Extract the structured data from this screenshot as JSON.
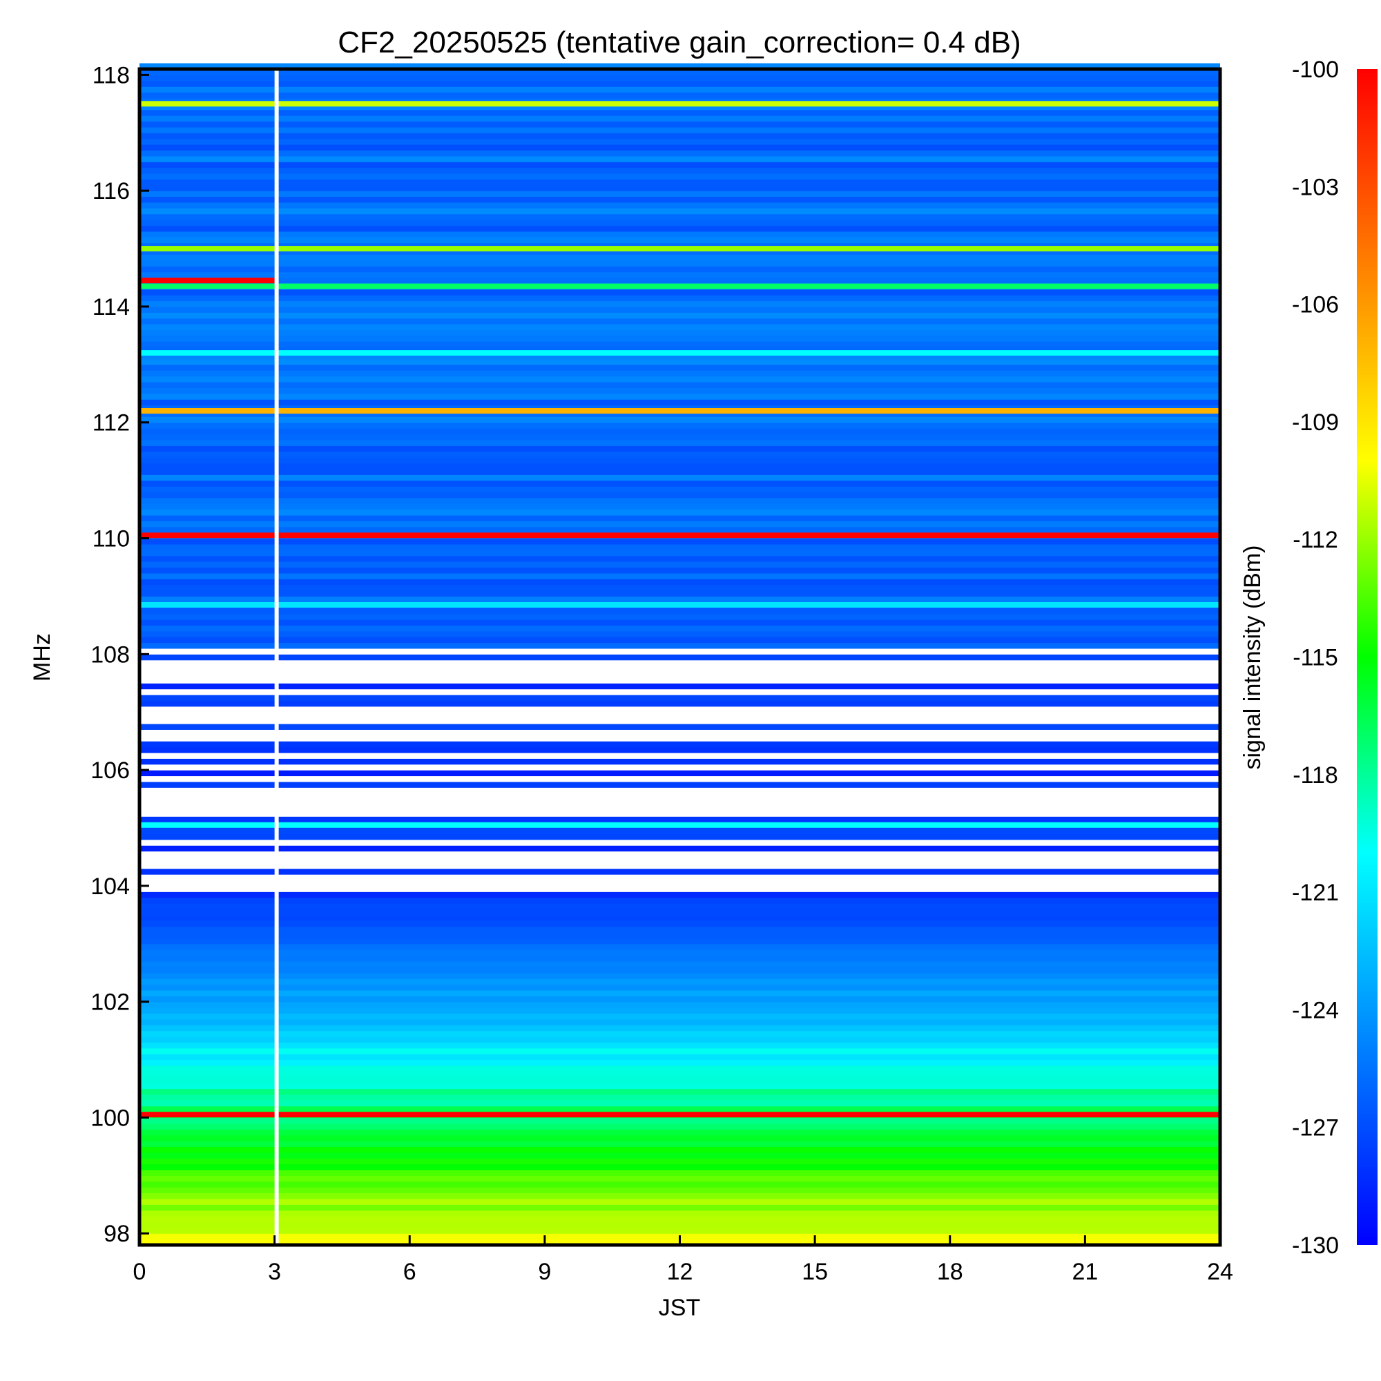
{
  "chart_data": {
    "type": "heatmap",
    "title": "CF2_20250525 (tentative gain_correction=  0.4 dB)",
    "xlabel": "JST",
    "ylabel": "MHz",
    "colorbar_label": "signal intensity (dBm)",
    "xlim": [
      0,
      24
    ],
    "ylim": [
      97.8,
      118.1
    ],
    "x_ticks": [
      "0",
      "3",
      "6",
      "9",
      "12",
      "15",
      "18",
      "21",
      "24"
    ],
    "y_ticks": [
      "98",
      "100",
      "102",
      "104",
      "106",
      "108",
      "110",
      "112",
      "114",
      "116",
      "118"
    ],
    "color_range": [
      -130,
      -100
    ],
    "colorbar_ticks": [
      "-100",
      "-103",
      "-106",
      "-109",
      "-112",
      "-115",
      "-118",
      "-121",
      "-124",
      "-127",
      "-130"
    ],
    "colormap": [
      "#0000ff",
      "#0080ff",
      "#00ffff",
      "#00ff00",
      "#ffff00",
      "#ff8000",
      "#ff0000"
    ],
    "data_gap": {
      "x_start": 3.0,
      "x_end": 3.08
    },
    "strong_bands": [
      {
        "freq": 117.5,
        "dbm": -111
      },
      {
        "freq": 115.0,
        "dbm": -112
      },
      {
        "freq": 114.45,
        "dbm": -100,
        "x_end": 3.0
      },
      {
        "freq": 114.35,
        "dbm": -117
      },
      {
        "freq": 113.2,
        "dbm": -120
      },
      {
        "freq": 112.2,
        "dbm": -107
      },
      {
        "freq": 110.05,
        "dbm": -100
      },
      {
        "freq": 108.85,
        "dbm": -121
      },
      {
        "freq": 105.05,
        "dbm": -120
      },
      {
        "freq": 100.05,
        "dbm": -100
      }
    ]
  }
}
